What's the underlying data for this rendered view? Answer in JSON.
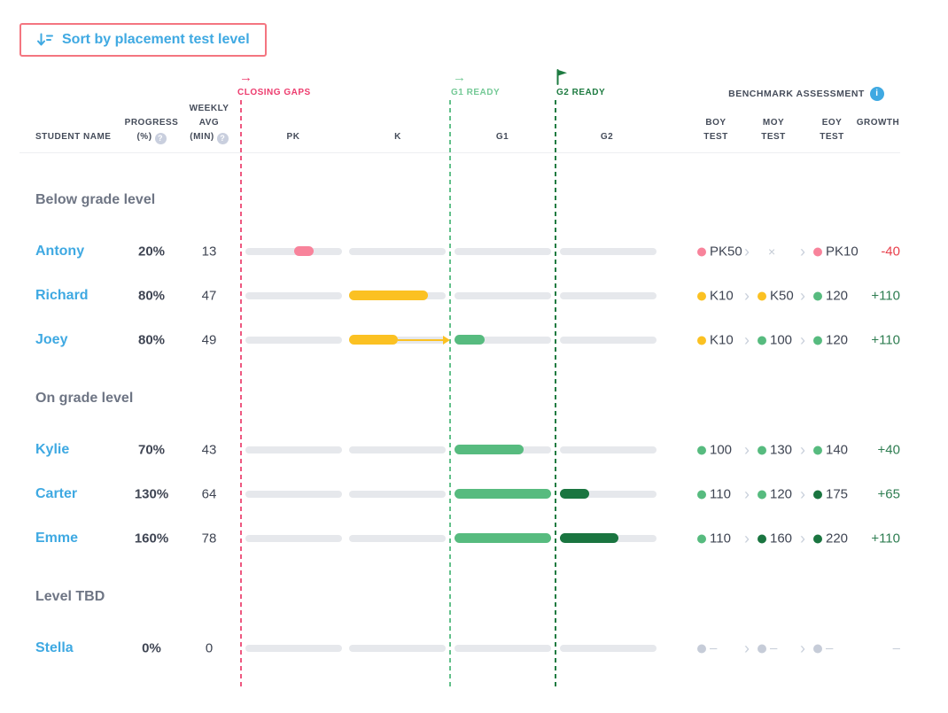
{
  "sort_button": {
    "label": "Sort by placement test level"
  },
  "icons": {
    "arrow_right": "→",
    "help": "?",
    "info": "i",
    "chevron": "›"
  },
  "header": {
    "student": "STUDENT NAME",
    "progress": [
      "PROGRESS",
      "(%)"
    ],
    "weekly": [
      "WEEKLY",
      "AVG",
      "(MIN)"
    ],
    "levels": [
      "PK",
      "K",
      "G1",
      "G2"
    ],
    "benchmark_title": "BENCHMARK ASSESSMENT",
    "benchmark_cols": [
      [
        "BOY",
        "TEST"
      ],
      [
        "MOY",
        "TEST"
      ],
      [
        "EOY",
        "TEST"
      ],
      [
        "GROWTH"
      ]
    ]
  },
  "zones": [
    {
      "id": "closing-gaps",
      "label": "CLOSING GAPS",
      "marker": "arrow"
    },
    {
      "id": "g1-ready",
      "label": "G1 READY",
      "marker": "arrow"
    },
    {
      "id": "g2-ready",
      "label": "G2 READY",
      "marker": "flag"
    }
  ],
  "colors": {
    "pink": "#F8839B",
    "yellow": "#FBC122",
    "green": "#57BB7F",
    "darkgreen": "#1A7540",
    "gray": "#C6CCD8",
    "negative": "#E8404C",
    "positive": "#2E7D51",
    "neutral": "#C6CCD8",
    "link_blue": "#3FA9E2",
    "zone_pink": "#ED3C6E",
    "zone_green": "#74C996",
    "zone_darkgreen": "#1E7B41",
    "track_gray": "#E6E8EC"
  },
  "groups": [
    {
      "label": "Below grade level",
      "rows": [
        {
          "name": "Antony",
          "progress": "20%",
          "weekly": "13",
          "bars": [
            {
              "col": 0,
              "from": 0.5,
              "to": 0.71,
              "color": "pink"
            }
          ],
          "benchmarks": [
            {
              "dot": "pink",
              "value": "PK50"
            },
            {
              "dot": "none",
              "value": "×"
            },
            {
              "dot": "pink",
              "value": "PK10"
            }
          ],
          "growth": {
            "value": "-40",
            "tone": "negative"
          }
        },
        {
          "name": "Richard",
          "progress": "80%",
          "weekly": "47",
          "bars": [
            {
              "col": 1,
              "from": 0,
              "to": 0.82,
              "color": "yellow"
            }
          ],
          "benchmarks": [
            {
              "dot": "yellow",
              "value": "K10"
            },
            {
              "dot": "yellow",
              "value": "K50"
            },
            {
              "dot": "green",
              "value": "120"
            }
          ],
          "growth": {
            "value": "+110",
            "tone": "positive"
          }
        },
        {
          "name": "Joey",
          "progress": "80%",
          "weekly": "49",
          "bars": [
            {
              "col": 1,
              "from": 0,
              "to": 0.5,
              "color": "yellow",
              "arrow_to_col_end": true
            },
            {
              "col": 2,
              "from": 0,
              "to": 0.31,
              "color": "green"
            }
          ],
          "benchmarks": [
            {
              "dot": "yellow",
              "value": "K10"
            },
            {
              "dot": "green",
              "value": "100"
            },
            {
              "dot": "green",
              "value": "120"
            }
          ],
          "growth": {
            "value": "+110",
            "tone": "positive"
          }
        }
      ]
    },
    {
      "label": "On grade level",
      "rows": [
        {
          "name": "Kylie",
          "progress": "70%",
          "weekly": "43",
          "bars": [
            {
              "col": 2,
              "from": 0,
              "to": 0.72,
              "color": "green"
            }
          ],
          "benchmarks": [
            {
              "dot": "green",
              "value": "100"
            },
            {
              "dot": "green",
              "value": "130"
            },
            {
              "dot": "green",
              "value": "140"
            }
          ],
          "growth": {
            "value": "+40",
            "tone": "positive"
          }
        },
        {
          "name": "Carter",
          "progress": "130%",
          "weekly": "64",
          "bars": [
            {
              "col": 2,
              "from": 0,
              "to": 1,
              "color": "green"
            },
            {
              "col": 3,
              "from": 0,
              "to": 0.3,
              "color": "darkgreen"
            }
          ],
          "benchmarks": [
            {
              "dot": "green",
              "value": "110"
            },
            {
              "dot": "green",
              "value": "120"
            },
            {
              "dot": "darkgreen",
              "value": "175"
            }
          ],
          "growth": {
            "value": "+65",
            "tone": "positive"
          }
        },
        {
          "name": "Emme",
          "progress": "160%",
          "weekly": "78",
          "bars": [
            {
              "col": 2,
              "from": 0,
              "to": 1,
              "color": "green"
            },
            {
              "col": 3,
              "from": 0,
              "to": 0.61,
              "color": "darkgreen"
            }
          ],
          "benchmarks": [
            {
              "dot": "green",
              "value": "110"
            },
            {
              "dot": "darkgreen",
              "value": "160"
            },
            {
              "dot": "darkgreen",
              "value": "220"
            }
          ],
          "growth": {
            "value": "+110",
            "tone": "positive"
          }
        }
      ]
    },
    {
      "label": "Level TBD",
      "rows": [
        {
          "name": "Stella",
          "progress": "0%",
          "weekly": "0",
          "bars": [],
          "benchmarks": [
            {
              "dot": "gray",
              "value": "–"
            },
            {
              "dot": "gray",
              "value": "–"
            },
            {
              "dot": "gray",
              "value": "–"
            }
          ],
          "growth": {
            "value": "–",
            "tone": "neutral"
          }
        }
      ]
    }
  ]
}
